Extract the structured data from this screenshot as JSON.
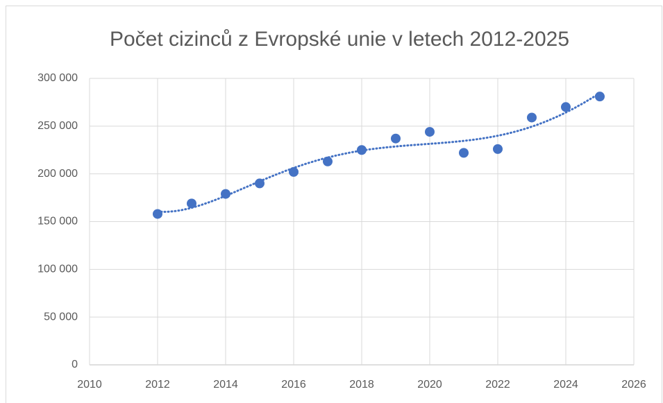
{
  "chart_data": {
    "type": "scatter",
    "title": "Počet cizinců z Evropské unie v letech 2012-2025",
    "x": [
      2012,
      2013,
      2014,
      2015,
      2016,
      2017,
      2018,
      2019,
      2020,
      2021,
      2022,
      2023,
      2024,
      2025
    ],
    "values": [
      158000,
      169000,
      179000,
      190000,
      202000,
      213000,
      225000,
      237000,
      244000,
      222000,
      226000,
      259000,
      270000,
      281000
    ],
    "color": "#4472c4",
    "xlim": [
      2010,
      2026
    ],
    "xticks": [
      2010,
      2012,
      2014,
      2016,
      2018,
      2020,
      2022,
      2024,
      2026
    ],
    "ylim": [
      0,
      300000
    ],
    "yticks": [
      0,
      {
        "value": 50000,
        "label": "50 000"
      },
      {
        "value": 100000,
        "label": "100 000"
      },
      {
        "value": 150000,
        "label": "150 000"
      },
      {
        "value": 200000,
        "label": "200 000"
      },
      {
        "value": 250000,
        "label": "250 000"
      },
      {
        "value": 300000,
        "label": "300 000"
      }
    ],
    "grid": true,
    "trendline": {
      "type": "polynomial",
      "order": 5
    }
  }
}
